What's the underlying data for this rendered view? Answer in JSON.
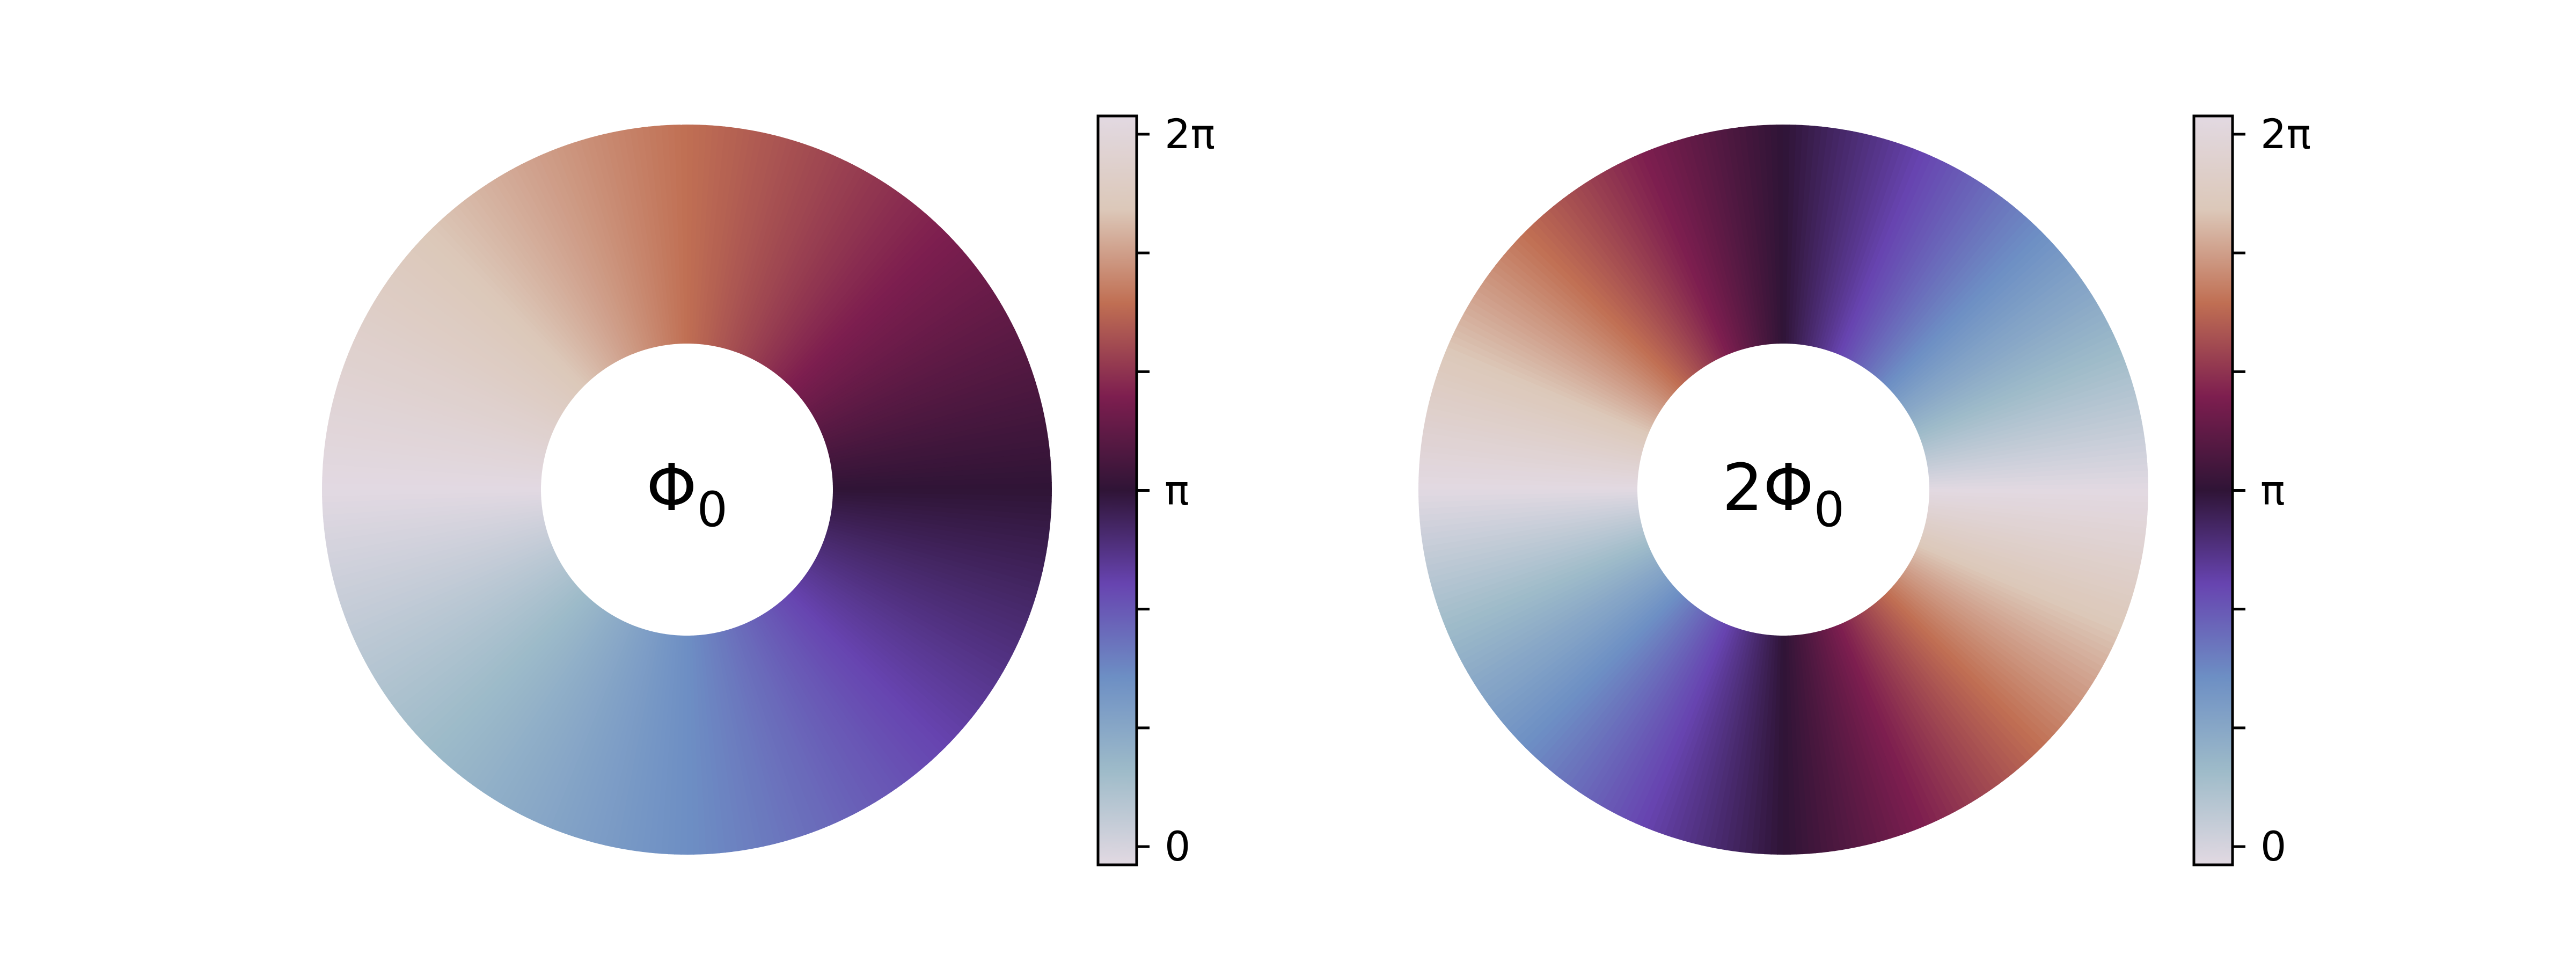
{
  "chart_data": [
    {
      "type": "heatmap",
      "plot": "annulus-phase",
      "center_label": "Φ",
      "center_label_sub": "0",
      "winding": 1,
      "colormap": "twilight_shifted",
      "colorbar": {
        "range": [
          0,
          6.283185307179586
        ],
        "tick_values": [
          0,
          1.0471975511965976,
          2.0943951023931953,
          3.141592653589793,
          4.1887902047863905,
          5.235987755982989,
          6.283185307179586
        ],
        "tick_labels": [
          "0",
          "",
          "",
          "π",
          "",
          "",
          "2π"
        ]
      }
    },
    {
      "type": "heatmap",
      "plot": "annulus-phase",
      "center_label": "2Φ",
      "center_label_sub": "0",
      "winding": 2,
      "colormap": "twilight_shifted",
      "colorbar": {
        "range": [
          0,
          6.283185307179586
        ],
        "tick_values": [
          0,
          1.0471975511965976,
          2.0943951023931953,
          3.141592653589793,
          4.1887902047863905,
          5.235987755982989,
          6.283185307179586
        ],
        "tick_labels": [
          "0",
          "",
          "",
          "π",
          "",
          "",
          "2π"
        ]
      }
    }
  ],
  "colors": {
    "twilight_shifted_stops": [
      "#e2d9e2",
      "#9ebbc9",
      "#6d8fc4",
      "#6744b0",
      "#2f1436",
      "#7d1e4f",
      "#c06f53",
      "#dcc8b9",
      "#e2d9e2"
    ],
    "axis": "#000000",
    "background": "#ffffff"
  }
}
